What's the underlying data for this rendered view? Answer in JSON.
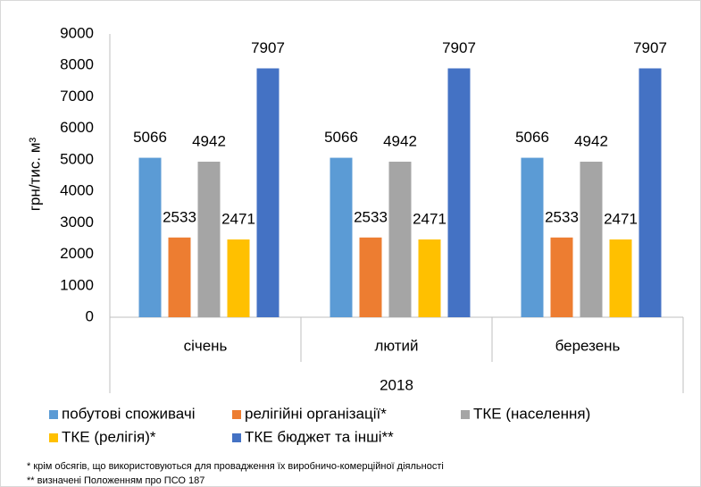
{
  "chart_data": {
    "type": "bar",
    "y_label": "грн/тис. м³",
    "categories": [
      "січень",
      "лютий",
      "березень"
    ],
    "group_label": "2018",
    "series": [
      {
        "name": "побутові споживачі",
        "color": "#5b9bd5",
        "values": [
          5066,
          5066,
          5066
        ]
      },
      {
        "name": "релігійні організації*",
        "color": "#ed7d31",
        "values": [
          2533,
          2533,
          2533
        ]
      },
      {
        "name": "ТКЕ (населення)",
        "color": "#a5a5a5",
        "values": [
          4942,
          4942,
          4942
        ]
      },
      {
        "name": "ТКЕ (релігія)*",
        "color": "#ffc000",
        "values": [
          2471,
          2471,
          2471
        ]
      },
      {
        "name": "ТКЕ бюджет та інші**",
        "color": "#4472c4",
        "values": [
          7907,
          7907,
          7907
        ]
      }
    ],
    "ylim": [
      0,
      9000
    ],
    "yticks": [
      0,
      1000,
      2000,
      3000,
      4000,
      5000,
      6000,
      7000,
      8000,
      9000
    ],
    "footnotes": [
      "* крім обсягів, що використовуються  для провадження їх виробничо-комерційної  діяльності",
      "** визначені  Положенням про ПСО 187"
    ]
  }
}
